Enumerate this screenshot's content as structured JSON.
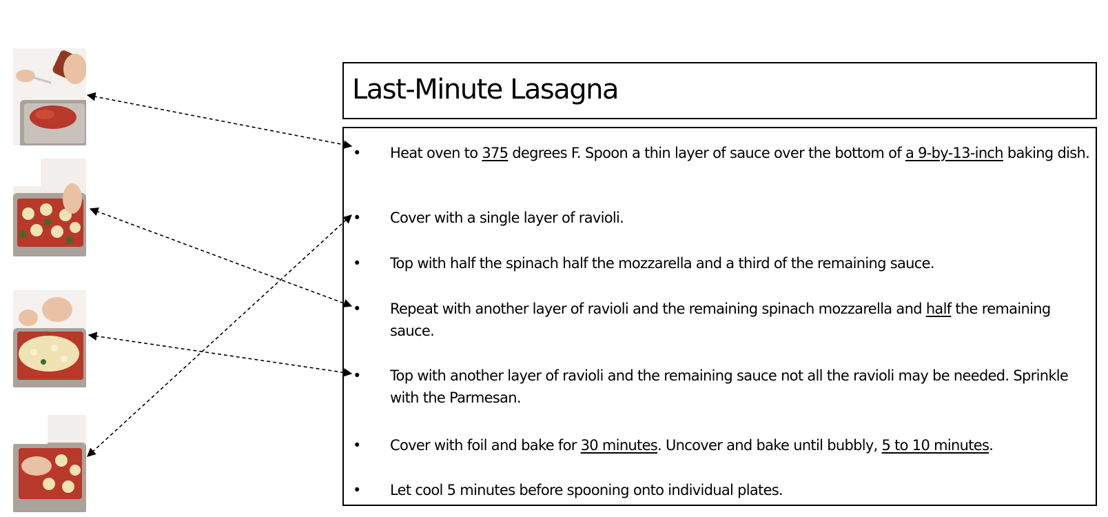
{
  "title": "Last-Minute Lasagna",
  "bullet": "•",
  "steps": [
    {
      "parts": [
        {
          "text": "Heat oven to ",
          "underline": false
        },
        {
          "text": "375",
          "underline": true
        },
        {
          "text": " degrees F. Spoon a thin layer of sauce over the bottom of ",
          "underline": false
        },
        {
          "text": "a 9-by-13-inch",
          "underline": true
        },
        {
          "text": " baking dish.",
          "underline": false
        }
      ]
    },
    {
      "parts": [
        {
          "text": "Cover with a single layer of ravioli.",
          "underline": false
        }
      ]
    },
    {
      "parts": [
        {
          "text": "Top with half the spinach half the mozzarella and a third of the remaining sauce.",
          "underline": false
        }
      ]
    },
    {
      "parts": [
        {
          "text": "Repeat with another layer of ravioli and the remaining spinach mozzarella and ",
          "underline": false
        },
        {
          "text": "half",
          "underline": true
        },
        {
          "text": " the remaining sauce.",
          "underline": false
        }
      ]
    },
    {
      "parts": [
        {
          "text": "Top with another layer of ravioli and the remaining sauce not all the ravioli may be needed. Sprinkle with the Parmesan.",
          "underline": false
        }
      ]
    },
    {
      "parts": [
        {
          "text": "Cover with foil and bake for ",
          "underline": false
        },
        {
          "text": "30 minutes",
          "underline": true
        },
        {
          "text": ". Uncover and bake until bubbly, ",
          "underline": false
        },
        {
          "text": "5 to 10 minutes",
          "underline": true
        },
        {
          "text": ".",
          "underline": false
        }
      ]
    },
    {
      "parts": [
        {
          "text": "Let cool 5 minutes before spooning onto individual plates.",
          "underline": false
        }
      ]
    }
  ],
  "photos": [
    {
      "icon": "sauce-jar-photo-icon"
    },
    {
      "icon": "ravioli-layer-photo-icon"
    },
    {
      "icon": "cheese-sprinkle-photo-icon"
    },
    {
      "icon": "ravioli-placing-photo-icon"
    }
  ],
  "arrow_links": [
    {
      "photo": 1,
      "step": 1
    },
    {
      "photo": 2,
      "step": 4
    },
    {
      "photo": 3,
      "step": 5
    },
    {
      "photo": 4,
      "step": 2
    }
  ],
  "colors": {
    "sauce": "#b8382a",
    "pan": "#a9a39b",
    "cheese": "#efe3b4",
    "spinach": "#3f6b2a",
    "skin": "#e9c2a6"
  }
}
